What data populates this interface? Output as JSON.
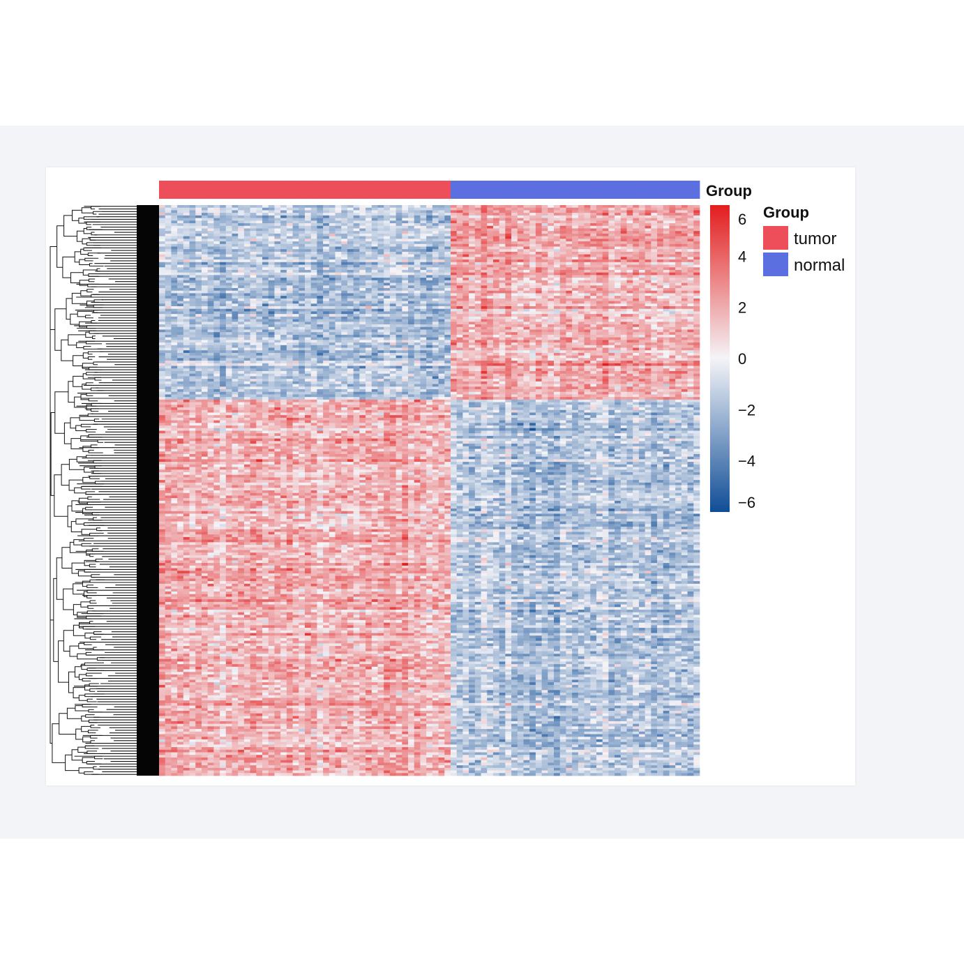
{
  "chart_data": {
    "type": "heatmap",
    "n_rows": 220,
    "row_dendrogram": true,
    "column_groups": [
      {
        "label": "tumor",
        "color": "#ee4d5a",
        "n_columns": 48
      },
      {
        "label": "normal",
        "color": "#5c6fe0",
        "n_columns": 41
      }
    ],
    "annotation_title": "Group",
    "legend": {
      "title": "Group",
      "items": [
        {
          "label": "tumor",
          "color": "#ee4d5a"
        },
        {
          "label": "normal",
          "color": "#5c6fe0"
        }
      ]
    },
    "color_scale": {
      "min": -6,
      "max": 6,
      "ticks": [
        "6",
        "4",
        "2",
        "0",
        "−2",
        "−4",
        "−6"
      ],
      "tick_values": [
        6,
        4,
        2,
        0,
        -2,
        -4,
        -6
      ],
      "low_color": "#0f4d96",
      "mid_color": "#f4f4f8",
      "high_color": "#e31d1d"
    },
    "pattern": {
      "row_blocks": [
        {
          "fraction": 0.34,
          "tumor_mean": -1.2,
          "normal_mean": 1.4
        },
        {
          "fraction": 0.66,
          "tumor_mean": 1.3,
          "normal_mean": -1.1
        }
      ]
    }
  }
}
